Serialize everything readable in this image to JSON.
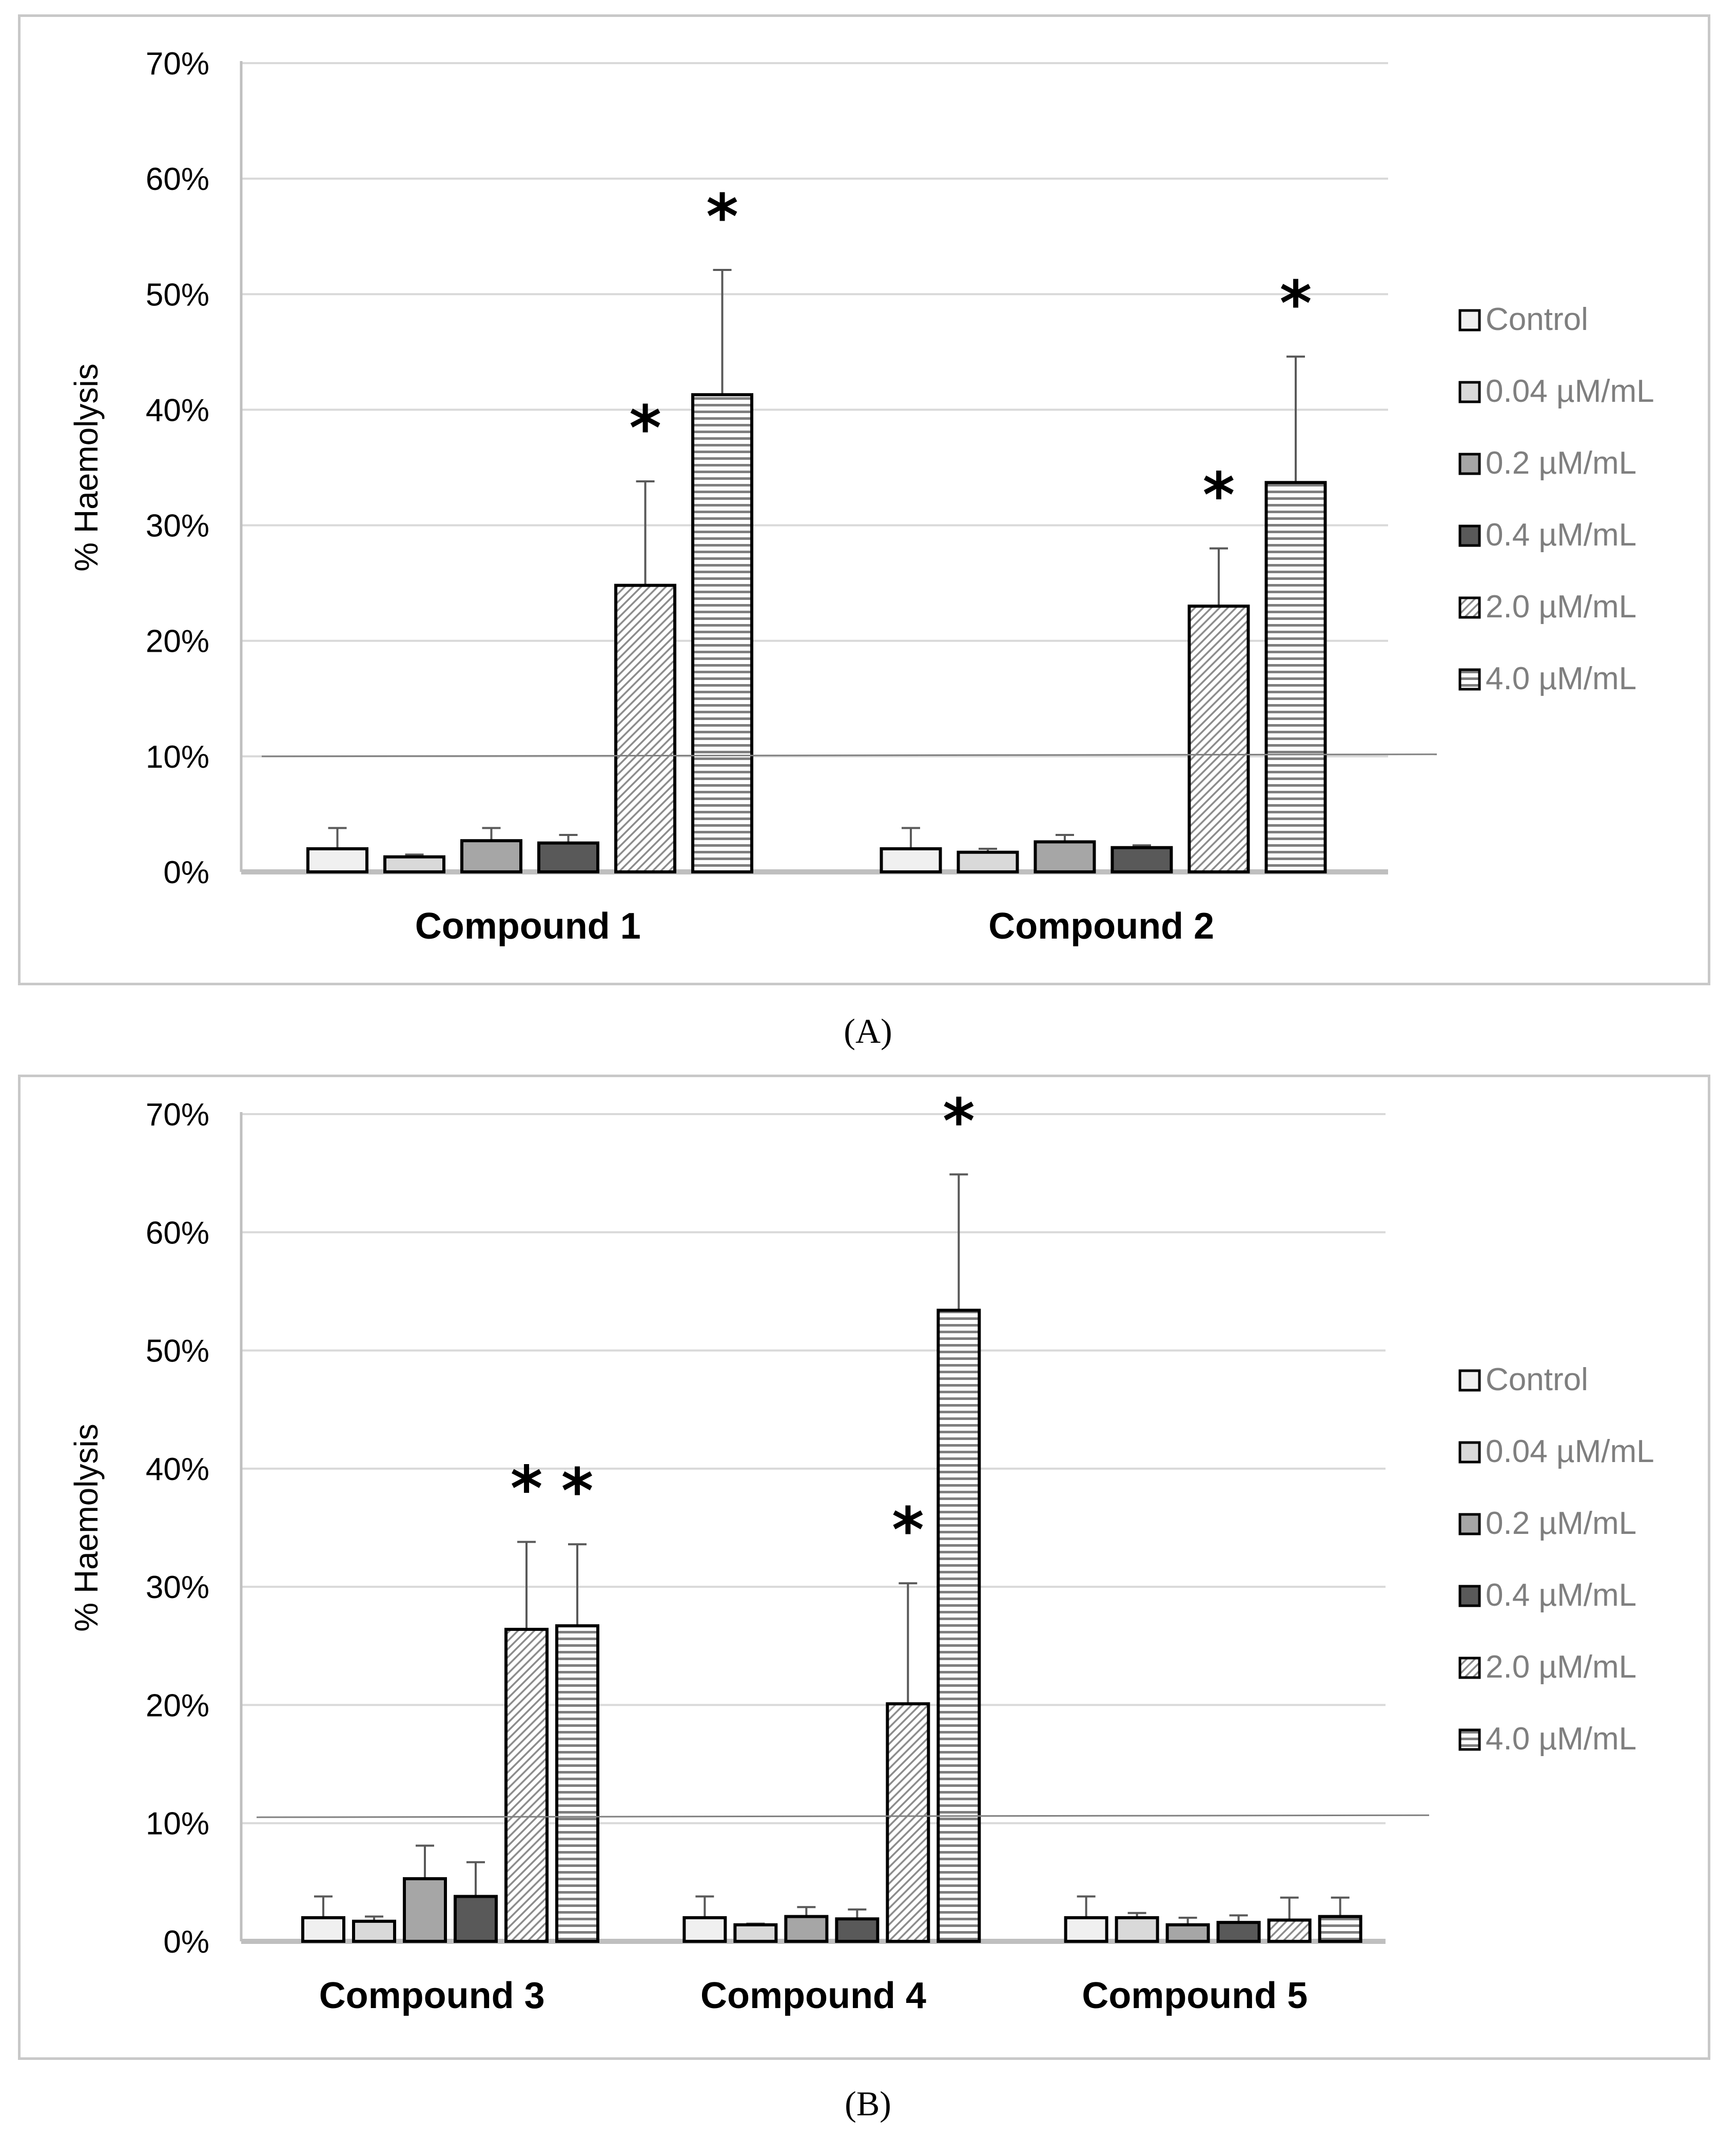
{
  "captions": {
    "a": "(A)",
    "b": "(B)"
  },
  "legend": [
    "Control",
    "0.04 µM/mL",
    "0.2 µM/mL",
    "0.4 µM/mL",
    "2.0 µM/mL",
    "4.0 µM/mL"
  ],
  "colors": {
    "control": "#f0f0f0",
    "c004": "#d9d9d9",
    "c02": "#a6a6a6",
    "c04": "#595959",
    "hatch": "#8c8c8c",
    "stripe": "#7f7f7f",
    "grid": "#d9d9d9",
    "axis": "#bfbfbf",
    "text": "#595959",
    "legend_text": "#7f7f7f"
  },
  "chart_data": [
    {
      "type": "bar",
      "panel": "A",
      "title": "",
      "ylabel": "% Haemolysis",
      "xlabel": "",
      "ylim": [
        0,
        70
      ],
      "yticks": [
        "0%",
        "10%",
        "20%",
        "30%",
        "40%",
        "50%",
        "60%",
        "70%"
      ],
      "categories": [
        "Compound 1",
        "Compound 2"
      ],
      "series": [
        {
          "name": "Control",
          "values": [
            2.0,
            2.0
          ],
          "errors": [
            1.8,
            1.8
          ]
        },
        {
          "name": "0.04 µM/mL",
          "values": [
            1.3,
            1.7
          ],
          "errors": [
            0.2,
            0.3
          ]
        },
        {
          "name": "0.2 µM/mL",
          "values": [
            2.7,
            2.6
          ],
          "errors": [
            1.1,
            0.6
          ]
        },
        {
          "name": "0.4 µM/mL",
          "values": [
            2.5,
            2.1
          ],
          "errors": [
            0.7,
            0.2
          ]
        },
        {
          "name": "2.0 µM/mL",
          "values": [
            24.8,
            23.0
          ],
          "errors": [
            9.0,
            5.0
          ]
        },
        {
          "name": "4.0 µM/mL",
          "values": [
            41.3,
            33.7
          ],
          "errors": [
            10.8,
            10.9
          ]
        }
      ],
      "significance": [
        {
          "category": "Compound 1",
          "series": "2.0 µM/mL",
          "label": "*"
        },
        {
          "category": "Compound 1",
          "series": "4.0 µM/mL",
          "label": "*"
        },
        {
          "category": "Compound 2",
          "series": "2.0 µM/mL",
          "label": "*"
        },
        {
          "category": "Compound 2",
          "series": "4.0 µM/mL",
          "label": "*"
        }
      ],
      "threshold": 10,
      "grid": true,
      "legend_position": "right"
    },
    {
      "type": "bar",
      "panel": "B",
      "title": "",
      "ylabel": "% Haemolysis",
      "xlabel": "",
      "ylim": [
        0,
        70
      ],
      "yticks": [
        "0%",
        "10%",
        "20%",
        "30%",
        "40%",
        "50%",
        "60%",
        "70%"
      ],
      "categories": [
        "Compound 3",
        "Compound 4",
        "Compound 5"
      ],
      "series": [
        {
          "name": "Control",
          "values": [
            2.0,
            2.0,
            2.0
          ],
          "errors": [
            1.8,
            1.8,
            1.8
          ]
        },
        {
          "name": "0.04 µM/mL",
          "values": [
            1.7,
            1.4,
            2.0
          ],
          "errors": [
            0.4,
            0.1,
            0.4
          ]
        },
        {
          "name": "0.2 µM/mL",
          "values": [
            5.3,
            2.1,
            1.4
          ],
          "errors": [
            2.8,
            0.8,
            0.6
          ]
        },
        {
          "name": "0.4 µM/mL",
          "values": [
            3.8,
            1.9,
            1.6
          ],
          "errors": [
            2.9,
            0.8,
            0.6
          ]
        },
        {
          "name": "2.0 µM/mL",
          "values": [
            26.4,
            20.1,
            1.8
          ],
          "errors": [
            7.4,
            10.2,
            1.9
          ]
        },
        {
          "name": "4.0 µM/mL",
          "values": [
            26.7,
            53.4,
            2.1
          ],
          "errors": [
            6.9,
            11.5,
            1.6
          ]
        }
      ],
      "significance": [
        {
          "category": "Compound 3",
          "series": "2.0 µM/mL",
          "label": "*"
        },
        {
          "category": "Compound 3",
          "series": "4.0 µM/mL",
          "label": "*"
        },
        {
          "category": "Compound 4",
          "series": "2.0 µM/mL",
          "label": "*"
        },
        {
          "category": "Compound 4",
          "series": "4.0 µM/mL",
          "label": "*"
        }
      ],
      "threshold": 10.5,
      "grid": true,
      "legend_position": "right"
    }
  ]
}
